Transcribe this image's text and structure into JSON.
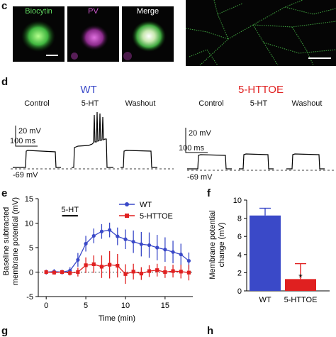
{
  "panel_c": {
    "label": "c",
    "images": [
      {
        "title": "Biocytin",
        "title_color": "#5fd65f"
      },
      {
        "title": "PV",
        "title_color": "#d25ad2"
      },
      {
        "title": "Merge",
        "title_color": "#ffffff"
      },
      {
        "title": "",
        "title_color": "#ffffff"
      }
    ]
  },
  "panel_d": {
    "label": "d",
    "groups": [
      {
        "name": "WT",
        "color": "#3a49c8",
        "conditions": [
          "Control",
          "5-HT",
          "Washout"
        ],
        "scale_mv": "20 mV",
        "scale_ms": "100 ms",
        "baseline": "-69 mV"
      },
      {
        "name": "5-HTTOE",
        "color": "#e02020",
        "conditions": [
          "Control",
          "5-HT",
          "Washout"
        ],
        "scale_mv": "20 mV",
        "scale_ms": "100 ms",
        "baseline": "-69 mV"
      }
    ]
  },
  "panel_e": {
    "label": "e",
    "drug_label": "5-HT",
    "colors": {
      "wt": "#3a49c8",
      "httoe": "#e02020"
    },
    "chart_data": {
      "type": "line",
      "xlabel": "Time (min)",
      "ylabel_lines": [
        "Baseline subtracted",
        "membrane potential (mV)"
      ],
      "xlim": [
        -1,
        18.5
      ],
      "ylim": [
        -5,
        15
      ],
      "xticks": [
        0,
        5,
        10,
        15
      ],
      "yticks": [
        -5,
        0,
        5,
        10,
        15
      ],
      "legend_position": "top-right",
      "series": [
        {
          "name": "WT",
          "x": [
            0,
            1,
            2,
            3,
            4,
            5,
            6,
            7,
            8,
            9,
            10,
            11,
            12,
            13,
            14,
            15,
            16,
            17,
            18
          ],
          "y": [
            0,
            0.1,
            0,
            0.3,
            2.5,
            5.8,
            7.4,
            8.3,
            8.6,
            7.3,
            6.7,
            6.2,
            5.7,
            5.5,
            5.0,
            4.6,
            4.1,
            3.6,
            2.3
          ],
          "err": [
            0.5,
            0.5,
            0.5,
            0.7,
            1.4,
            1.6,
            1.5,
            1.5,
            1.5,
            1.8,
            2.0,
            2.3,
            2.5,
            2.6,
            2.6,
            2.5,
            2.3,
            2.2,
            1.7
          ]
        },
        {
          "name": "5-HTTOE",
          "x": [
            0,
            1,
            2,
            3,
            4,
            5,
            6,
            7,
            8,
            9,
            10,
            11,
            12,
            13,
            14,
            15,
            16,
            17,
            18
          ],
          "y": [
            0,
            -0.1,
            0,
            -0.2,
            0,
            1.4,
            1.6,
            1.1,
            1.5,
            1.3,
            -0.4,
            0.1,
            -0.3,
            0.2,
            0.4,
            0.0,
            0.2,
            0.1,
            -0.1
          ],
          "err": [
            0.4,
            0.4,
            0.4,
            0.5,
            0.9,
            1.6,
            1.8,
            2.3,
            2.8,
            2.4,
            2.0,
            1.6,
            1.3,
            1.2,
            1.3,
            1.2,
            1.3,
            1.4,
            1.6
          ]
        }
      ]
    }
  },
  "panel_f": {
    "label": "f",
    "significance": "*",
    "chart_data": {
      "type": "bar",
      "categories": [
        "WT",
        "5-HTTOE"
      ],
      "values": [
        8.3,
        1.3
      ],
      "errors": [
        0.8,
        1.7
      ],
      "colors": [
        "#3a49c8",
        "#e02020"
      ],
      "ylabel_lines": [
        "Membrane potential",
        "change (mV)"
      ],
      "ylim": [
        0,
        10
      ],
      "yticks": [
        0,
        2,
        4,
        6,
        8,
        10
      ]
    }
  },
  "panel_g": {
    "label": "g"
  },
  "panel_h": {
    "label": "h"
  }
}
